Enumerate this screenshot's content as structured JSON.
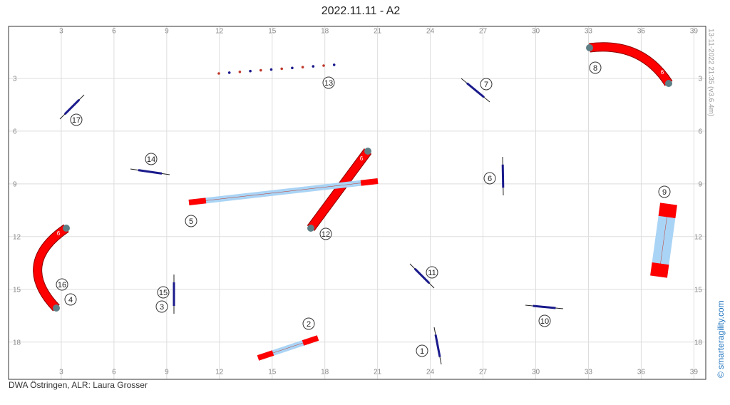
{
  "title": "2022.11.11 - A2",
  "footer": "DWA Östringen, ALR: Laura Grosser",
  "timestamp": "13-11-2022 21:35  (v3.6.4m)",
  "credit": "© smarteragility.com",
  "xticks": [
    3,
    6,
    9,
    12,
    15,
    18,
    21,
    24,
    27,
    30,
    33,
    36,
    39
  ],
  "yticks": [
    3,
    6,
    9,
    12,
    15,
    18
  ],
  "obstacle_numbers": [
    "1",
    "2",
    "3",
    "4",
    "5",
    "6",
    "7",
    "8",
    "9",
    "10",
    "11",
    "12",
    "13",
    "14",
    "15",
    "16",
    "17"
  ],
  "tunnel_lengths": [
    "6",
    "6",
    "6"
  ]
}
